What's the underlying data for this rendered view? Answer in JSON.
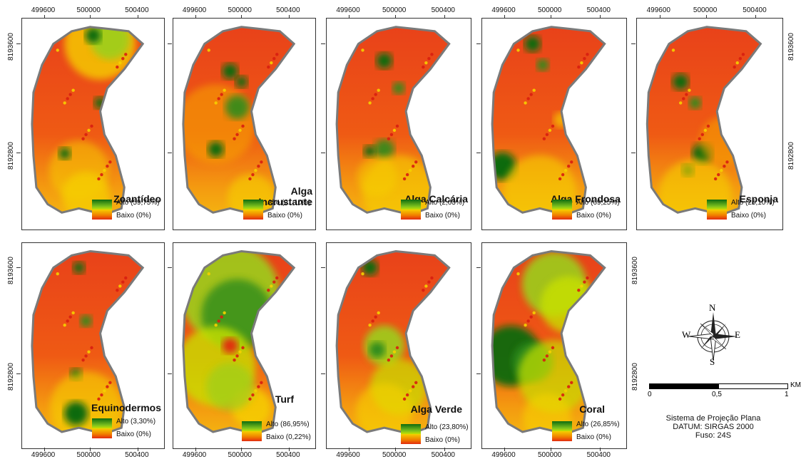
{
  "panels": [
    {
      "id": "zoantideo",
      "title_lines": [
        "Zoantídeo"
      ],
      "alto": "Alto (59,75%)",
      "baixo": "Baixo (0%)"
    },
    {
      "id": "alga-incrustante",
      "title_lines": [
        "Alga",
        "Incrustante"
      ],
      "alto": "Alto (21,10%)",
      "baixo": "Baixo (0%)"
    },
    {
      "id": "alga-calcaria",
      "title_lines": [
        "Alga Calcária"
      ],
      "alto": "Alto (2,63%)",
      "baixo": "Baixo (0%)"
    },
    {
      "id": "alga-frondosa",
      "title_lines": [
        "Alga Frondosa"
      ],
      "alto": "Alto (69,25%)",
      "baixo": "Baixo (0%)"
    },
    {
      "id": "esponja",
      "title_lines": [
        "Esponja"
      ],
      "alto": "Alto (26,10%)",
      "baixo": "Baixo (0%)"
    },
    {
      "id": "equinodermos",
      "title_lines": [
        "Equinodermos"
      ],
      "alto": "Alto (3,30%)",
      "baixo": "Baixo (0%)"
    },
    {
      "id": "turf",
      "title_lines": [
        "Turf"
      ],
      "alto": "Alto (86,95%)",
      "baixo": "Baixo (0,22%)"
    },
    {
      "id": "alga-verde",
      "title_lines": [
        "Alga Verde"
      ],
      "alto": "Alto (23,80%)",
      "baixo": "Baixo (0%)"
    },
    {
      "id": "coral",
      "title_lines": [
        "Coral"
      ],
      "alto": "Alto (26,85%)",
      "baixo": "Baixo (0%)"
    }
  ],
  "x_ticks": [
    "499600",
    "500000",
    "500400"
  ],
  "y_ticks": [
    "8193600",
    "8192800"
  ],
  "compass": {
    "n": "N",
    "s": "S",
    "e": "E",
    "w": "W"
  },
  "scale": {
    "labels": [
      "0",
      "0,5",
      "1"
    ],
    "unit": "KM"
  },
  "projection": {
    "line1": "Sistema de Projeção Plana",
    "line2": "DATUM: SIRGAS 2000",
    "line3": "Fuso: 24S"
  },
  "colors": {
    "alto": "#0f6b0f",
    "mid": "#f5d000",
    "baixo": "#e22b10",
    "outline": "#7a7a7a"
  }
}
